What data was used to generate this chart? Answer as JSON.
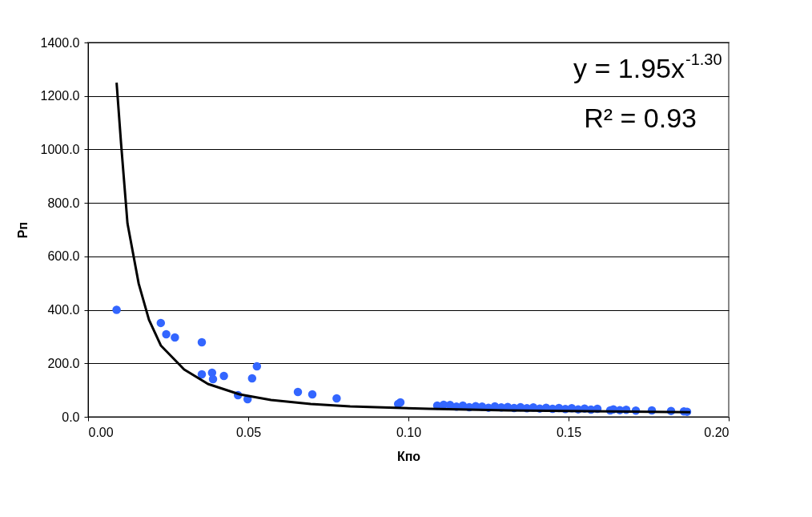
{
  "chart_data": {
    "type": "scatter",
    "xlabel": "Кпо",
    "ylabel": "Рп",
    "xlim": [
      0,
      0.2
    ],
    "xticks": [
      {
        "value": 0,
        "label": "0.00"
      },
      {
        "value": 0.05,
        "label": "0.05"
      },
      {
        "value": 0.1,
        "label": "0.10"
      },
      {
        "value": 0.15,
        "label": "0.15"
      },
      {
        "value": 0.2,
        "label": "0.20"
      }
    ],
    "ylim": [
      0,
      1400
    ],
    "yticks": [
      {
        "value": 0,
        "label": "0.0"
      },
      {
        "value": 200,
        "label": "200.0"
      },
      {
        "value": 400,
        "label": "400.0"
      },
      {
        "value": 600,
        "label": "600.0"
      },
      {
        "value": 800,
        "label": "800.0"
      },
      {
        "value": 1000,
        "label": "1000.0"
      },
      {
        "value": 1200,
        "label": "1200.0"
      },
      {
        "value": 1400,
        "label": "1400.0"
      }
    ],
    "grid": "y",
    "marker": "circle",
    "annotations": [
      "y = 1.95x$^{-1.30}$",
      "R² = 0.93"
    ],
    "series": [
      {
        "color": "#3366ff",
        "x": [
          0.0089,
          0.0227,
          0.0244,
          0.0271,
          0.0355,
          0.0355,
          0.0387,
          0.039,
          0.0424,
          0.0468,
          0.0498,
          0.0512,
          0.0527,
          0.0655,
          0.07,
          0.0776,
          0.0968,
          0.0975,
          0.109,
          0.111,
          0.113,
          0.115,
          0.117,
          0.119,
          0.121,
          0.123,
          0.125,
          0.127,
          0.129,
          0.131,
          0.133,
          0.135,
          0.137,
          0.139,
          0.141,
          0.143,
          0.145,
          0.147,
          0.149,
          0.151,
          0.153,
          0.155,
          0.157,
          0.159,
          0.163,
          0.164,
          0.166,
          0.168,
          0.171,
          0.176,
          0.182,
          0.186,
          0.187
        ],
        "values": [
          400,
          351,
          309,
          297,
          279,
          159,
          165,
          141,
          153,
          81,
          66,
          144,
          189,
          93,
          84,
          69,
          48,
          54,
          42,
          45,
          44,
          38,
          42,
          36,
          40,
          38,
          34,
          39,
          35,
          37,
          33,
          36,
          32,
          35,
          31,
          34,
          30,
          33,
          29,
          32,
          28,
          31,
          27,
          30,
          24,
          28,
          25,
          26,
          23,
          24,
          22,
          20,
          19
        ]
      },
      {
        "type": "line",
        "marker": "none",
        "color": "#000000",
        "x": [
          0.0089,
          0.0103,
          0.0123,
          0.0158,
          0.019,
          0.0227,
          0.03,
          0.0374,
          0.0473,
          0.0571,
          0.0695,
          0.0818,
          0.1064,
          0.131,
          0.1557,
          0.188
        ],
        "values": [
          1250,
          1022,
          723,
          498,
          363,
          267,
          177,
          123,
          84,
          63,
          48,
          39,
          30,
          24,
          21,
          17
        ]
      }
    ]
  }
}
